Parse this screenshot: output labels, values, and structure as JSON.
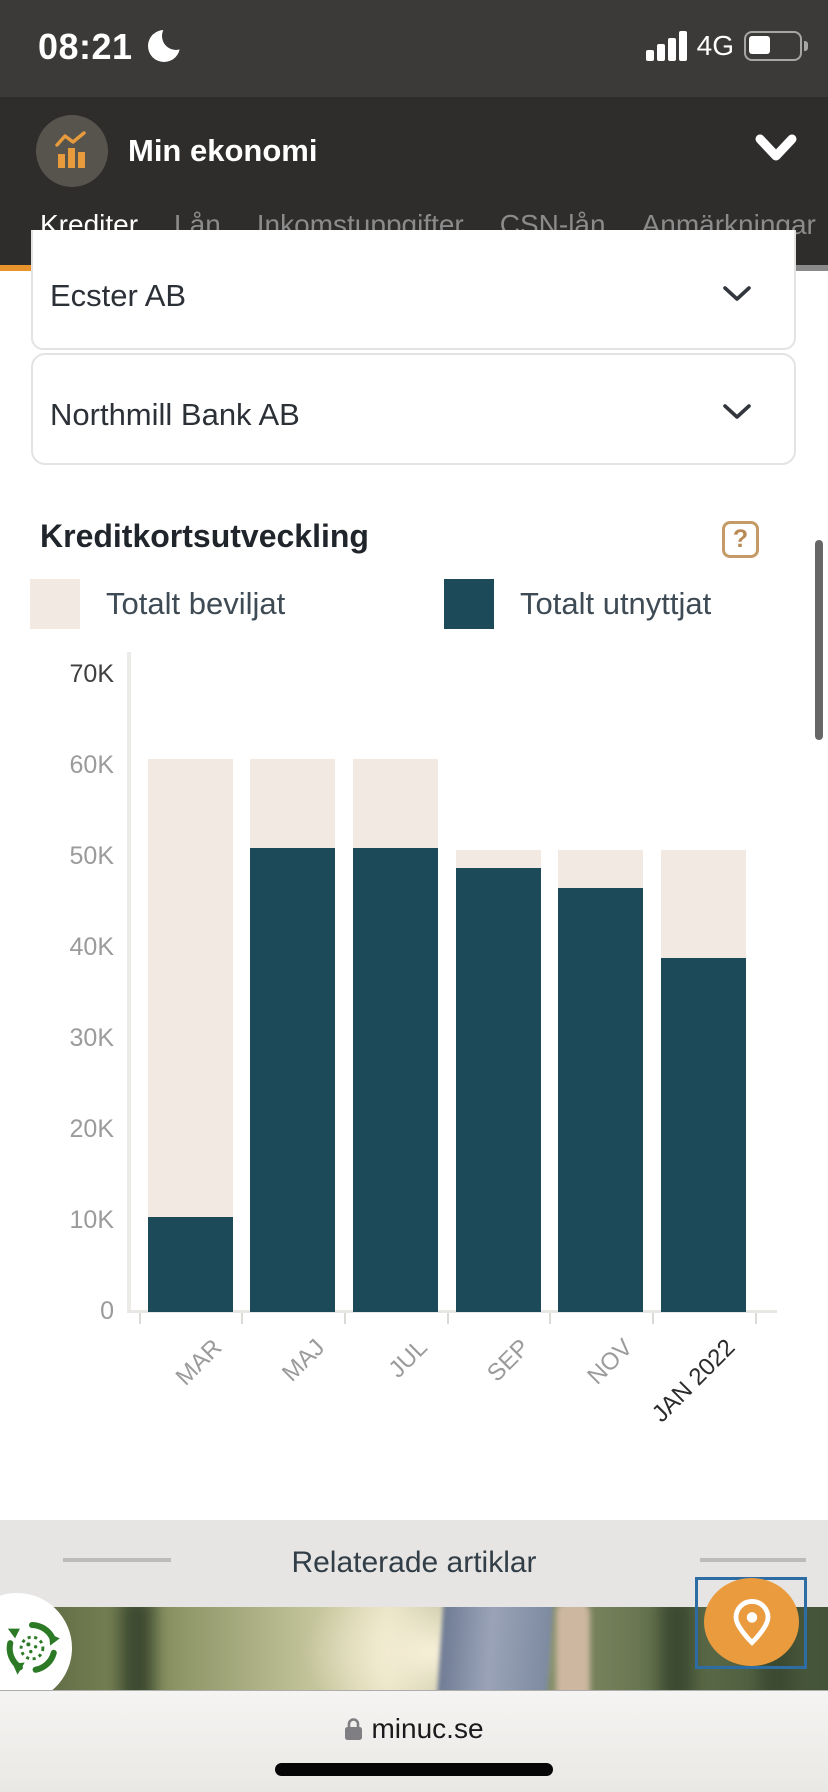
{
  "status_bar": {
    "time": "08:21",
    "network": "4G"
  },
  "header": {
    "title": "Min ekonomi"
  },
  "tabs": [
    {
      "label": "Krediter",
      "active": true
    },
    {
      "label": "Lån",
      "active": false
    },
    {
      "label": "Inkomstuppgifter",
      "active": false
    },
    {
      "label": "CSN-lån",
      "active": false
    },
    {
      "label": "Anmärkningar",
      "active": false
    }
  ],
  "cards": [
    {
      "name": "Ecster AB"
    },
    {
      "name": "Northmill Bank AB"
    }
  ],
  "chart_section": {
    "title": "Kreditkortsutveckling",
    "help_label": "?"
  },
  "chart_data": {
    "type": "bar",
    "title": "Kreditkortsutveckling",
    "categories": [
      "MAR",
      "MAJ",
      "JUL",
      "SEP",
      "NOV",
      "JAN 2022"
    ],
    "series": [
      {
        "name": "Totalt beviljat",
        "color": "#f2e9e2",
        "values": [
          60800,
          60800,
          60800,
          50800,
          50800,
          50800
        ]
      },
      {
        "name": "Totalt utnyttjat",
        "color": "#1d4a59",
        "values": [
          10400,
          51000,
          51000,
          48800,
          46600,
          38900
        ]
      }
    ],
    "bar_style": "overlay",
    "ylim": [
      0,
      70000
    ],
    "yticks": [
      "70K",
      "60K",
      "50K",
      "40K",
      "30K",
      "20K",
      "10K",
      "0"
    ],
    "xlabel": "",
    "ylabel": "",
    "grid": false,
    "legend_position": "top",
    "highlighted_ytick": "70K",
    "highlighted_category": "JAN 2022"
  },
  "related": {
    "title": "Relaterade artiklar"
  },
  "browser": {
    "url": "minuc.se"
  },
  "colors": {
    "accent_orange": "#e8932c",
    "beige": "#f2e9e2",
    "teal": "#1d4a59",
    "help_brown": "#b98a55",
    "focus_blue": "#2e6da4",
    "cookiebot_green": "#2c7a26"
  }
}
